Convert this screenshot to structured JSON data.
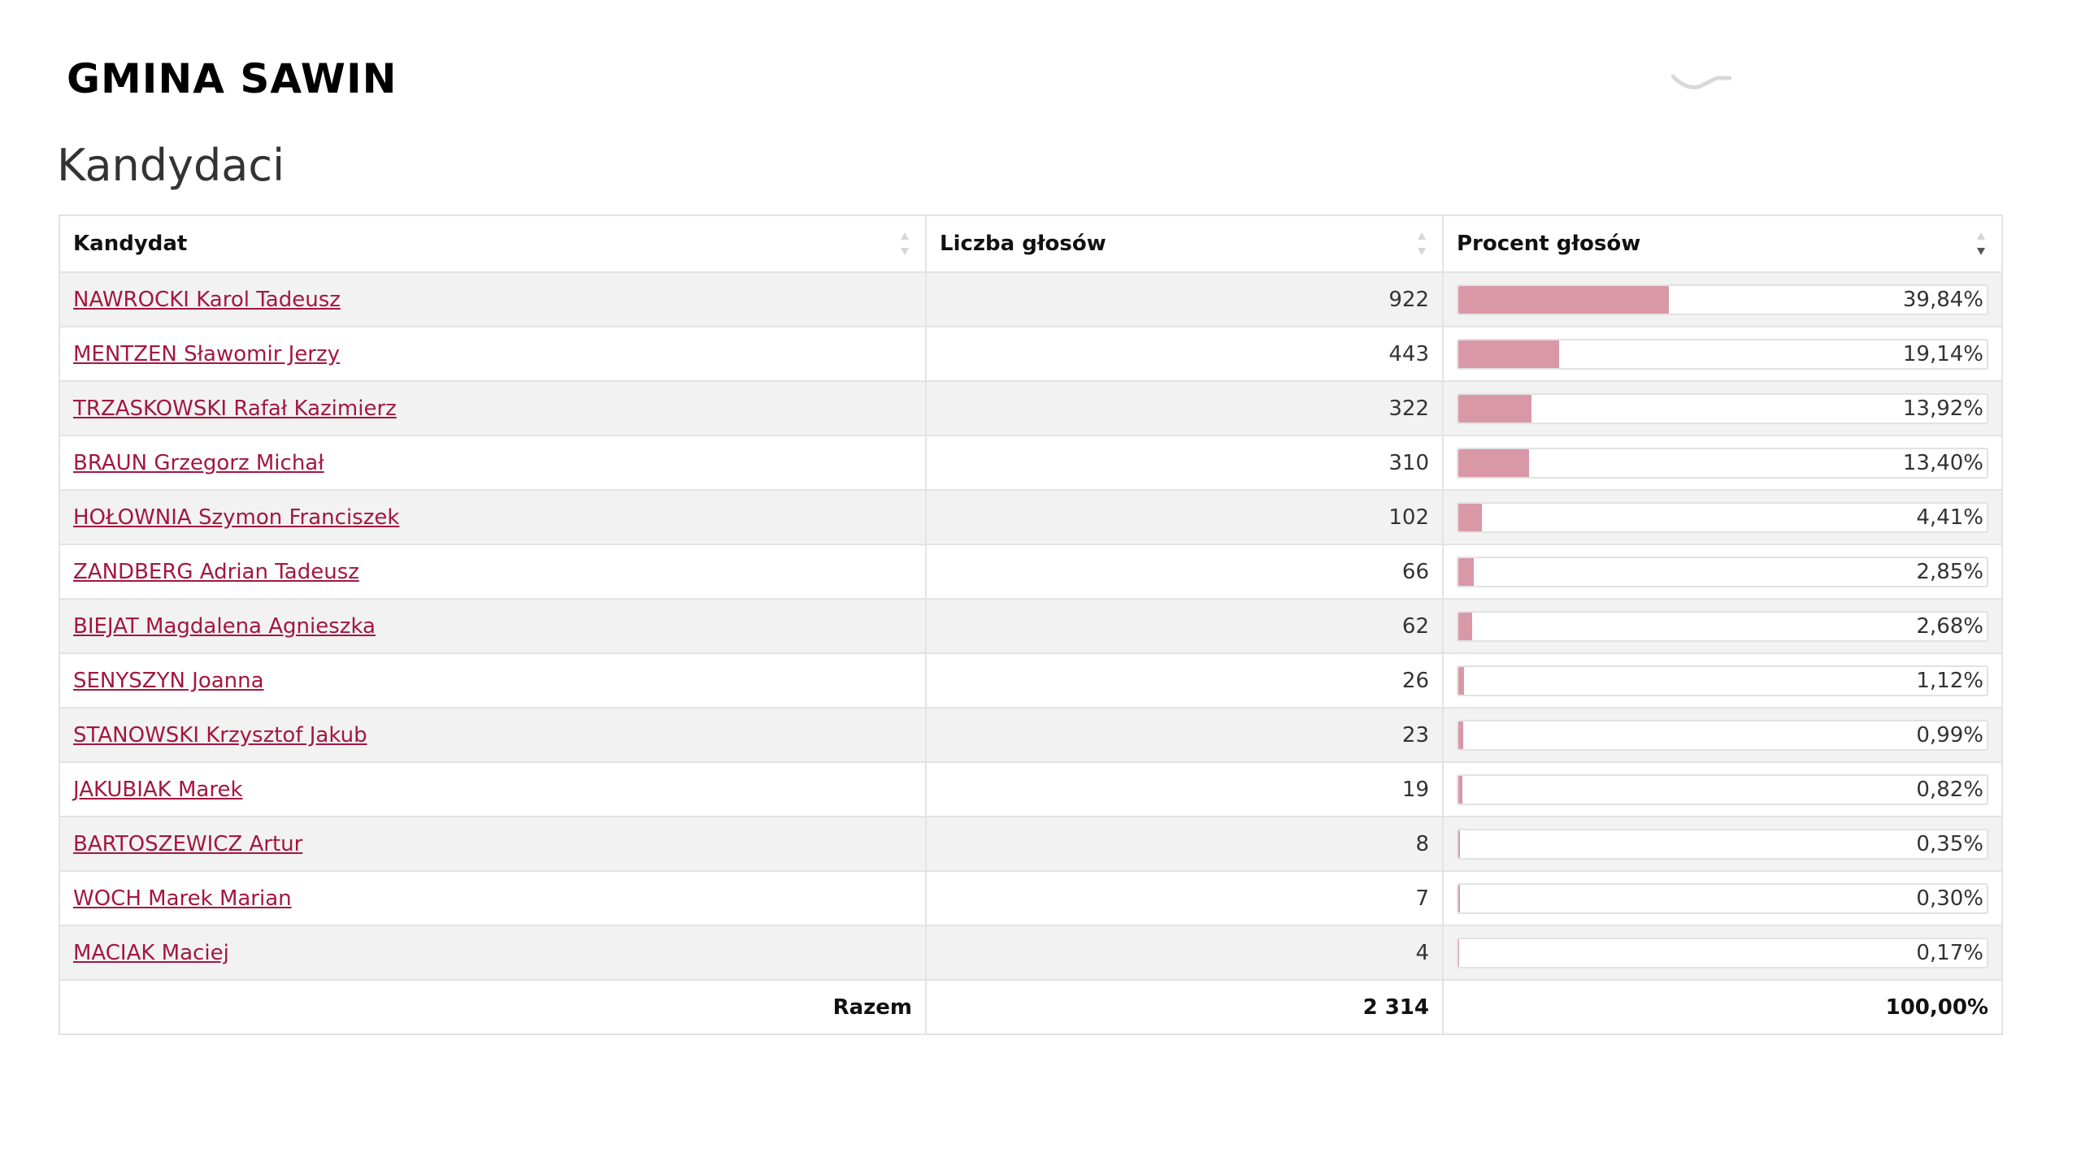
{
  "page": {
    "title": "GMINA SAWIN",
    "section_title": "Kandydaci"
  },
  "table": {
    "headers": {
      "candidate": "Kandydat",
      "votes": "Liczba głosów",
      "percent": "Procent głosów"
    },
    "rows": [
      {
        "name": "NAWROCKI Karol Tadeusz",
        "votes": "922",
        "percent": "39,84%",
        "share": 39.84
      },
      {
        "name": "MENTZEN Sławomir Jerzy",
        "votes": "443",
        "percent": "19,14%",
        "share": 19.14
      },
      {
        "name": "TRZASKOWSKI Rafał Kazimierz",
        "votes": "322",
        "percent": "13,92%",
        "share": 13.92
      },
      {
        "name": "BRAUN Grzegorz Michał",
        "votes": "310",
        "percent": "13,40%",
        "share": 13.4
      },
      {
        "name": "HOŁOWNIA Szymon Franciszek",
        "votes": "102",
        "percent": "4,41%",
        "share": 4.41
      },
      {
        "name": "ZANDBERG Adrian Tadeusz",
        "votes": "66",
        "percent": "2,85%",
        "share": 2.85
      },
      {
        "name": "BIEJAT Magdalena Agnieszka",
        "votes": "62",
        "percent": "2,68%",
        "share": 2.68
      },
      {
        "name": "SENYSZYN Joanna",
        "votes": "26",
        "percent": "1,12%",
        "share": 1.12
      },
      {
        "name": "STANOWSKI Krzysztof Jakub",
        "votes": "23",
        "percent": "0,99%",
        "share": 0.99
      },
      {
        "name": "JAKUBIAK Marek",
        "votes": "19",
        "percent": "0,82%",
        "share": 0.82
      },
      {
        "name": "BARTOSZEWICZ Artur",
        "votes": "8",
        "percent": "0,35%",
        "share": 0.35
      },
      {
        "name": "WOCH Marek Marian",
        "votes": "7",
        "percent": "0,30%",
        "share": 0.3
      },
      {
        "name": "MACIAK Maciej",
        "votes": "4",
        "percent": "0,17%",
        "share": 0.17
      }
    ],
    "footer": {
      "label": "Razem",
      "votes": "2 314",
      "percent": "100,00%"
    }
  },
  "colors": {
    "link": "#a3173f",
    "bar_fill": "#d998a7",
    "row_stripe": "#f2f2f2"
  },
  "icons": {
    "sort_unsorted": "sort-both-icon",
    "sort_desc": "sort-desc-icon"
  }
}
